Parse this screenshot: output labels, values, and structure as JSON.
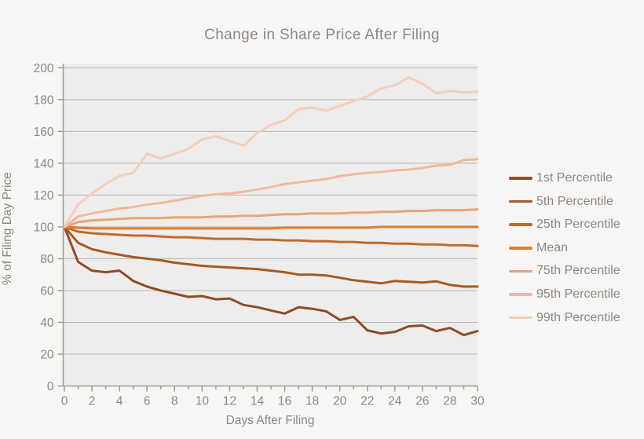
{
  "chart_data": {
    "type": "line",
    "title": "Change in Share Price After Filing",
    "xlabel": "Days After Filing",
    "ylabel": "% of Filing Day Price",
    "xlim": [
      0,
      30
    ],
    "ylim": [
      0,
      200
    ],
    "x_ticks": [
      0,
      2,
      4,
      6,
      8,
      10,
      12,
      14,
      16,
      18,
      20,
      22,
      24,
      26,
      28,
      30
    ],
    "x_minor_tick_interval": 1,
    "y_ticks": [
      0,
      20,
      40,
      60,
      80,
      100,
      120,
      140,
      160,
      180,
      200
    ],
    "grid": "horizontal",
    "legend_position": "right",
    "x": [
      0,
      1,
      2,
      3,
      4,
      5,
      6,
      7,
      8,
      9,
      10,
      11,
      12,
      13,
      14,
      15,
      16,
      17,
      18,
      19,
      20,
      21,
      22,
      23,
      24,
      25,
      26,
      27,
      28,
      29,
      30
    ],
    "series": [
      {
        "name": "1st Percentile",
        "color": "#8e4c28",
        "values": [
          100,
          78,
          72.5,
          71.5,
          72.5,
          66,
          62.5,
          60,
          58,
          56,
          56.5,
          54.5,
          55,
          51,
          49.5,
          47.5,
          45.5,
          49.5,
          48.5,
          47,
          41.5,
          43.5,
          35,
          33,
          34,
          37.5,
          38,
          34.5,
          36.5,
          32,
          34.5
        ]
      },
      {
        "name": "5th Percentile",
        "color": "#a55a24",
        "values": [
          100,
          90,
          86,
          84,
          82.5,
          81,
          80,
          79,
          77.5,
          76.5,
          75.5,
          75,
          74.5,
          74,
          73.5,
          72.5,
          71.5,
          70,
          70,
          69.5,
          68,
          66.5,
          65.5,
          64.5,
          66,
          65.5,
          65,
          65.8,
          63.5,
          62.5,
          62.5
        ]
      },
      {
        "name": "25th Percentile",
        "color": "#c06a2d",
        "values": [
          100,
          97,
          96,
          95.5,
          95,
          94.5,
          94.5,
          94,
          93.5,
          93.5,
          93,
          92.5,
          92.5,
          92.5,
          92,
          92,
          91.5,
          91.5,
          91,
          91,
          90.5,
          90.5,
          90,
          90,
          89.5,
          89.5,
          89,
          89,
          88.5,
          88.5,
          88
        ]
      },
      {
        "name": "Mean",
        "color": "#e07b30",
        "values": [
          100,
          99.5,
          99,
          99,
          99,
          99,
          99,
          99,
          99,
          99,
          99,
          99,
          99,
          99,
          99,
          99,
          99.5,
          99.5,
          99.5,
          99.5,
          99.5,
          99.5,
          99.5,
          100,
          100,
          100,
          100,
          100,
          100,
          100,
          100
        ]
      },
      {
        "name": "75th Percentile",
        "color": "#e7a478",
        "values": [
          100,
          103,
          104,
          104.5,
          105,
          105.5,
          105.5,
          105.5,
          106,
          106,
          106,
          106.5,
          106.5,
          107,
          107,
          107.5,
          108,
          108,
          108.5,
          108.5,
          108.5,
          109,
          109,
          109.5,
          109.5,
          110,
          110,
          110.5,
          110.5,
          110.5,
          111
        ]
      },
      {
        "name": "95th Percentile",
        "color": "#f0b89e",
        "values": [
          100,
          106.5,
          108.5,
          110,
          111.5,
          112.5,
          114,
          115,
          116.5,
          118,
          119.5,
          120.5,
          121,
          122,
          123.5,
          125,
          127,
          128,
          129,
          130,
          132,
          133,
          134,
          134.5,
          135.5,
          136,
          137,
          138.5,
          139,
          142,
          142.5
        ]
      },
      {
        "name": "99th Percentile",
        "color": "#f4cfbc",
        "values": [
          100,
          114,
          121,
          127,
          132,
          134,
          146,
          143,
          146,
          149,
          155,
          157,
          154,
          151,
          159,
          164,
          167,
          174,
          175,
          173,
          176,
          179,
          182,
          187,
          189,
          194,
          190,
          184,
          185.5,
          184.5,
          185
        ]
      }
    ],
    "theme": {
      "background": "#f7f6f5",
      "plot_background": "#eeedec",
      "grid_color": "#b8b6b4",
      "axis_color": "#9b9995",
      "text_color": "#8a8784",
      "line_width": 3
    }
  }
}
